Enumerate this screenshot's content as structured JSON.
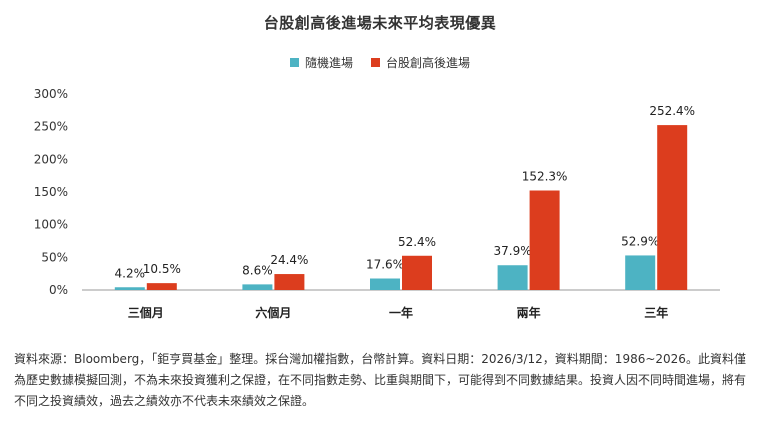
{
  "chart_data": {
    "type": "bar",
    "title": "台股創高後進場未來平均表現優異",
    "categories": [
      "三個月",
      "六個月",
      "一年",
      "兩年",
      "三年"
    ],
    "series": [
      {
        "name": "隨機進場",
        "color": "#4db3c3",
        "values": [
          4.2,
          8.6,
          17.6,
          37.9,
          52.9
        ],
        "labels": [
          "4.2%",
          "8.6%",
          "17.6%",
          "37.9%",
          "52.9%"
        ]
      },
      {
        "name": "台股創高後進場",
        "color": "#dc3d1e",
        "values": [
          10.5,
          24.4,
          52.4,
          152.3,
          252.4
        ],
        "labels": [
          "10.5%",
          "24.4%",
          "52.4%",
          "152.3%",
          "252.4%"
        ]
      }
    ],
    "yticks": [
      "0%",
      "50%",
      "100%",
      "150%",
      "200%",
      "250%",
      "300%"
    ],
    "ylim": [
      0,
      300
    ],
    "xlabel": "",
    "ylabel": "",
    "grid": false,
    "legend_position": "top-center"
  },
  "source_note": "資料來源：Bloomberg，「鉅亨買基金」整理。採台灣加權指數，台幣計算。資料日期：2026/3/12，資料期間：1986~2026。此資料僅為歷史數據模擬回測，不為未來投資獲利之保證，在不同指數走勢、比重與期間下，可能得到不同數據結果。投資人因不同時間進場，將有不同之投資績效，過去之績效亦不代表未來績效之保證。"
}
